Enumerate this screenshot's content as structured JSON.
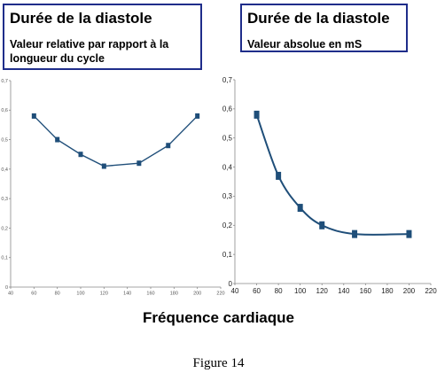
{
  "charts": {
    "left": {
      "title": "Durée de la diastole",
      "subtitle": "Valeur relative par rapport à la longueur du cycle"
    },
    "right": {
      "title": "Durée de la diastole",
      "subtitle": "Valeur absolue en mS"
    }
  },
  "xlabel": "Fréquence cardiaque",
  "caption": "Figure 14",
  "colors": {
    "series": "#1f4e79",
    "box_border": "#1f2d8a",
    "axis": "#888888"
  },
  "chart_data": [
    {
      "type": "line",
      "title": "Durée de la diastole",
      "subtitle": "Valeur relative par rapport à la longueur du cycle",
      "xlabel": "Fréquence cardiaque",
      "ylabel": "",
      "xlim": [
        40,
        220
      ],
      "ylim": [
        0,
        0.7
      ],
      "xticks": [
        40,
        60,
        80,
        100,
        120,
        140,
        160,
        180,
        200,
        220
      ],
      "yticks": [
        0,
        0.1,
        0.2,
        0.3,
        0.4,
        0.5,
        0.6,
        0.7
      ],
      "grid": false,
      "x": [
        60,
        80,
        100,
        120,
        150,
        175,
        200
      ],
      "y": [
        0.58,
        0.5,
        0.45,
        0.41,
        0.42,
        0.48,
        0.58
      ]
    },
    {
      "type": "line",
      "title": "Durée de la diastole",
      "subtitle": "Valeur absolue en mS",
      "xlabel": "Fréquence cardiaque",
      "ylabel": "",
      "xlim": [
        40,
        220
      ],
      "ylim": [
        0,
        0.7
      ],
      "xticks": [
        40,
        60,
        80,
        100,
        120,
        140,
        160,
        180,
        200,
        220
      ],
      "yticks": [
        0,
        0.1,
        0.2,
        0.3,
        0.4,
        0.5,
        0.6,
        0.7
      ],
      "grid": false,
      "smooth": true,
      "x": [
        60,
        80,
        100,
        120,
        150,
        200
      ],
      "y": [
        0.58,
        0.37,
        0.26,
        0.2,
        0.17,
        0.17
      ]
    }
  ]
}
